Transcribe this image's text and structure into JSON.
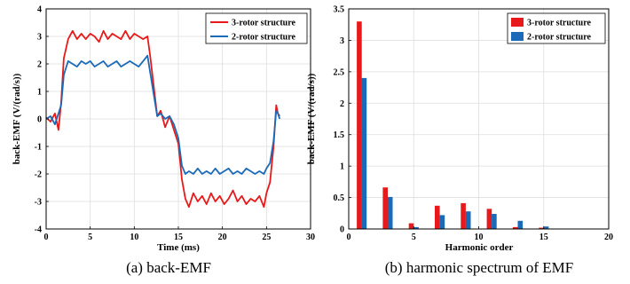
{
  "colors": {
    "series_1": "#e8191a",
    "series_2": "#1a6ab8"
  },
  "chart_data": [
    {
      "type": "line",
      "caption": "(a) back-EMF",
      "xlabel": "Time (ms)",
      "ylabel": "back-EMF (V/(rad/s))",
      "xlim": [
        0,
        30
      ],
      "ylim": [
        -4,
        4
      ],
      "xticks": [
        0,
        5,
        10,
        15,
        20,
        25,
        30
      ],
      "yticks": [
        -4,
        -3,
        -2,
        -1,
        0,
        1,
        2,
        3,
        4
      ],
      "grid": true,
      "legend_position": "top-right",
      "series": [
        {
          "name": "3-rotor structure",
          "x": [
            0,
            0.5,
            1.0,
            1.4,
            1.7,
            2.0,
            2.5,
            3,
            3.5,
            4,
            4.5,
            5,
            5.5,
            6,
            6.5,
            7,
            7.5,
            8,
            8.5,
            9,
            9.5,
            10,
            10.5,
            11,
            11.5,
            11.8,
            12.2,
            12.6,
            13,
            13.5,
            14,
            14.5,
            15,
            15.4,
            15.8,
            16.2,
            16.7,
            17.2,
            17.7,
            18.2,
            18.7,
            19.2,
            19.7,
            20.2,
            20.7,
            21.2,
            21.7,
            22.2,
            22.7,
            23.2,
            23.7,
            24.2,
            24.7,
            25.0,
            25.4,
            25.8,
            26.1,
            26.3,
            26.5
          ],
          "values": [
            0.05,
            -0.1,
            0.2,
            -0.4,
            0.6,
            2.2,
            2.9,
            3.2,
            2.9,
            3.1,
            2.9,
            3.1,
            3.0,
            2.8,
            3.2,
            2.9,
            3.1,
            3.0,
            2.9,
            3.2,
            2.9,
            3.1,
            3.0,
            2.9,
            3.0,
            2.3,
            1.2,
            0.1,
            0.3,
            -0.3,
            0.1,
            -0.4,
            -0.9,
            -2.2,
            -2.9,
            -3.2,
            -2.7,
            -3.0,
            -2.8,
            -3.1,
            -2.7,
            -3.0,
            -2.8,
            -3.1,
            -2.9,
            -2.6,
            -3.0,
            -2.8,
            -3.1,
            -2.9,
            -3.0,
            -2.8,
            -3.2,
            -2.7,
            -2.3,
            -1.0,
            0.5,
            0.2,
            0.1
          ]
        },
        {
          "name": "2-rotor structure",
          "x": [
            0,
            0.5,
            1.0,
            1.4,
            1.7,
            2.0,
            2.5,
            3,
            3.5,
            4,
            4.5,
            5,
            5.5,
            6,
            6.5,
            7,
            7.5,
            8,
            8.5,
            9,
            9.5,
            10,
            10.5,
            11,
            11.5,
            11.8,
            12.2,
            12.6,
            13,
            13.5,
            14,
            14.5,
            15,
            15.4,
            15.8,
            16.2,
            16.7,
            17.2,
            17.7,
            18.2,
            18.7,
            19.2,
            19.7,
            20.2,
            20.7,
            21.2,
            21.7,
            22.2,
            22.7,
            23.2,
            23.7,
            24.2,
            24.7,
            25.0,
            25.4,
            25.8,
            26.1,
            26.3,
            26.5
          ],
          "values": [
            0.0,
            0.1,
            -0.2,
            0.2,
            0.5,
            1.6,
            2.1,
            2.0,
            1.9,
            2.1,
            2.0,
            2.1,
            1.9,
            2.0,
            2.1,
            1.9,
            2.0,
            2.1,
            1.9,
            2.0,
            2.1,
            2.0,
            1.9,
            2.1,
            2.3,
            1.7,
            0.9,
            0.1,
            0.2,
            0.0,
            0.1,
            -0.2,
            -0.7,
            -1.7,
            -2.0,
            -1.9,
            -2.0,
            -1.8,
            -2.0,
            -1.9,
            -2.0,
            -1.8,
            -2.0,
            -1.9,
            -1.8,
            -2.0,
            -1.9,
            -2.0,
            -1.8,
            -1.9,
            -2.0,
            -1.9,
            -2.0,
            -1.8,
            -1.6,
            -0.8,
            0.3,
            0.2,
            0.0
          ]
        }
      ]
    },
    {
      "type": "bar",
      "caption": "(b) harmonic spectrum of EMF",
      "xlabel": "Harmonic order",
      "ylabel": "back-EMF (V/(rad/s))",
      "xlim": [
        0,
        20
      ],
      "ylim": [
        0,
        3.5
      ],
      "xticks": [
        0,
        5,
        10,
        15,
        20
      ],
      "yticks": [
        0,
        0.5,
        1,
        1.5,
        2,
        2.5,
        3,
        3.5
      ],
      "grid": true,
      "legend_position": "top-right",
      "categories": [
        1,
        3,
        5,
        7,
        9,
        11,
        13,
        15
      ],
      "series": [
        {
          "name": "3-rotor structure",
          "values": [
            3.3,
            0.66,
            0.09,
            0.37,
            0.41,
            0.32,
            0.03,
            0.02
          ]
        },
        {
          "name": "2-rotor structure",
          "values": [
            2.4,
            0.51,
            0.03,
            0.22,
            0.28,
            0.24,
            0.13,
            0.04
          ]
        }
      ]
    }
  ]
}
